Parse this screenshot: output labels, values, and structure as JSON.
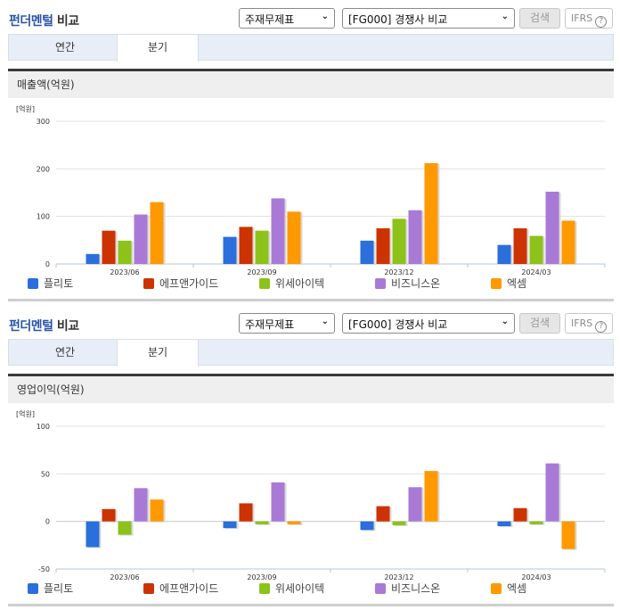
{
  "header": {
    "title_part1": "펀더멘털",
    "title_part2": "비교",
    "report_select": "주재무제표",
    "compare_select": "[FG000] 경쟁사 비교",
    "search_button": "검색",
    "ifrs_button": "IFRS",
    "help_icon": "?"
  },
  "tabs": [
    {
      "label": "연간",
      "active": false
    },
    {
      "label": "분기",
      "active": true
    }
  ],
  "colors": {
    "플리토": "#2a6fdb",
    "에프앤가이드": "#cc3300",
    "위세아이텍": "#8cc21a",
    "비즈니스온": "#a87ad6",
    "엑셈": "#ff9900"
  },
  "sections": [
    {
      "subtitle": "매출액(억원)",
      "unit": "[억원]"
    },
    {
      "subtitle": "영업이익(억원)",
      "unit": "[억원]"
    }
  ],
  "legend": [
    "플리토",
    "에프앤가이드",
    "위세아이텍",
    "비즈니스온",
    "엑셈"
  ],
  "chart_data": [
    {
      "type": "bar",
      "title": "매출액(억원)",
      "ylabel": "[억원]",
      "categories": [
        "2023/06",
        "2023/09",
        "2023/12",
        "2024/03"
      ],
      "ylim": [
        0,
        300
      ],
      "yticks": [
        0,
        100,
        200,
        300
      ],
      "grid": true,
      "legend_position": "bottom",
      "series": [
        {
          "name": "플리토",
          "values": [
            21,
            57,
            49,
            40
          ]
        },
        {
          "name": "에프앤가이드",
          "values": [
            70,
            78,
            75,
            75
          ]
        },
        {
          "name": "위세아이텍",
          "values": [
            49,
            70,
            95,
            59
          ]
        },
        {
          "name": "비즈니스온",
          "values": [
            104,
            138,
            113,
            152
          ]
        },
        {
          "name": "엑셈",
          "values": [
            130,
            110,
            212,
            91
          ]
        }
      ]
    },
    {
      "type": "bar",
      "title": "영업이익(억원)",
      "ylabel": "[억원]",
      "categories": [
        "2023/06",
        "2023/09",
        "2023/12",
        "2024/03"
      ],
      "ylim": [
        -50,
        100
      ],
      "yticks": [
        -50,
        0,
        50,
        100
      ],
      "grid": true,
      "legend_position": "bottom",
      "series": [
        {
          "name": "플리토",
          "values": [
            -27,
            -7,
            -9,
            -5
          ]
        },
        {
          "name": "에프앤가이드",
          "values": [
            13,
            19,
            16,
            14
          ]
        },
        {
          "name": "위세아이텍",
          "values": [
            -14,
            -3,
            -4,
            -3
          ]
        },
        {
          "name": "비즈니스온",
          "values": [
            35,
            41,
            36,
            61
          ]
        },
        {
          "name": "엑셈",
          "values": [
            23,
            -3,
            53,
            -29
          ]
        }
      ]
    }
  ]
}
